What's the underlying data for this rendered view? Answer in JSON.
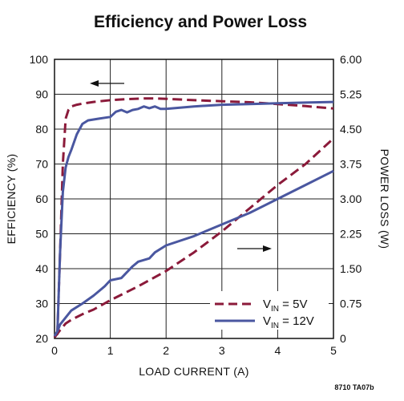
{
  "chart_data": {
    "type": "line",
    "title": "Efficiency and Power Loss",
    "xlabel": "LOAD CURRENT (A)",
    "ylabel_left": "EFFICIENCY (%)",
    "ylabel_right": "POWER LOSS (W)",
    "xlim": [
      0,
      5
    ],
    "ylim_left": [
      20,
      100
    ],
    "ylim_right": [
      0,
      6
    ],
    "x_ticks": [
      "0",
      "1",
      "2",
      "3",
      "4",
      "5"
    ],
    "y_left_ticks": [
      "20",
      "30",
      "40",
      "50",
      "60",
      "70",
      "80",
      "90",
      "100"
    ],
    "y_right_ticks": [
      "0",
      "0.75",
      "1.50",
      "2.25",
      "3.00",
      "3.75",
      "4.50",
      "5.25",
      "6.00"
    ],
    "grid": true,
    "legend_position": "bottom-right",
    "series": [
      {
        "name": "VIN = 5V",
        "legend_main": "V",
        "legend_sub": "IN",
        "legend_rest": " = 5V",
        "axis": "left",
        "style": "dashed",
        "color": "#8b1a3a",
        "x": [
          0.05,
          0.1,
          0.15,
          0.2,
          0.25,
          0.3,
          0.4,
          0.5,
          0.7,
          1.0,
          1.3,
          1.6,
          1.8,
          2.0,
          2.5,
          3.0,
          3.5,
          4.0,
          4.5,
          5.0
        ],
        "y": [
          21,
          45,
          70,
          83,
          85.5,
          86.5,
          87,
          87.3,
          87.8,
          88.3,
          88.6,
          88.8,
          88.8,
          88.7,
          88.3,
          88.0,
          87.7,
          87.2,
          86.6,
          85.9
        ]
      },
      {
        "name": "VIN = 12V",
        "legend_main": "V",
        "legend_sub": "IN",
        "legend_rest": " = 12V",
        "axis": "left",
        "style": "solid",
        "color": "#4a57a0",
        "x": [
          0.05,
          0.1,
          0.15,
          0.2,
          0.25,
          0.3,
          0.4,
          0.5,
          0.6,
          0.8,
          1.0,
          1.1,
          1.2,
          1.3,
          1.4,
          1.5,
          1.6,
          1.7,
          1.8,
          1.9,
          2.0,
          2.5,
          3.0,
          3.5,
          4.0,
          4.5,
          5.0
        ],
        "y": [
          21,
          45,
          62,
          69,
          72,
          74,
          78.5,
          81.5,
          82.5,
          83,
          83.5,
          85,
          85.5,
          84.8,
          85.5,
          85.8,
          86.5,
          86,
          86.5,
          85.8,
          85.8,
          86.5,
          87.0,
          87.2,
          87.4,
          87.6,
          87.8
        ]
      },
      {
        "name": "VIN = 5V",
        "axis": "right",
        "style": "dashed",
        "color": "#8b1a3a",
        "x": [
          0,
          0.1,
          0.2,
          0.3,
          0.5,
          0.7,
          1.0,
          1.5,
          2.0,
          2.5,
          3.0,
          3.5,
          4.0,
          4.5,
          5.0
        ],
        "y": [
          0.02,
          0.18,
          0.32,
          0.4,
          0.52,
          0.62,
          0.82,
          1.12,
          1.45,
          1.85,
          2.3,
          2.8,
          3.3,
          3.75,
          4.3
        ]
      },
      {
        "name": "VIN = 12V",
        "axis": "right",
        "style": "solid",
        "color": "#4a57a0",
        "x": [
          0,
          0.05,
          0.1,
          0.2,
          0.3,
          0.5,
          0.7,
          0.9,
          1.0,
          1.2,
          1.4,
          1.5,
          1.7,
          1.8,
          2.0,
          2.5,
          3.0,
          3.5,
          4.0,
          4.5,
          5.0
        ],
        "y": [
          0.05,
          0.15,
          0.3,
          0.45,
          0.6,
          0.75,
          0.92,
          1.12,
          1.25,
          1.3,
          1.55,
          1.65,
          1.72,
          1.85,
          2.0,
          2.2,
          2.45,
          2.7,
          3.0,
          3.3,
          3.6
        ]
      }
    ],
    "annotations": [
      {
        "type": "arrow",
        "direction": "left",
        "at_x": 1.0,
        "at_y_left": 93.5,
        "meaning": "efficiency curves read on left axis"
      },
      {
        "type": "arrow",
        "direction": "right",
        "at_x": 3.8,
        "at_y_left": 47,
        "meaning": "power loss curves read on right axis"
      }
    ]
  },
  "figure_code": "8710 TA07b"
}
